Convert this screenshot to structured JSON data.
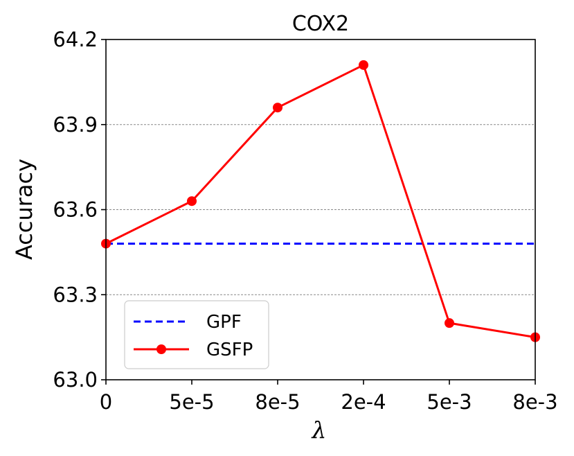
{
  "chart_data": {
    "type": "line",
    "title": "COX2",
    "xlabel": "λ",
    "ylabel": "Accuracy",
    "categories": [
      "0",
      "5e-5",
      "8e-5",
      "2e-4",
      "5e-3",
      "8e-3"
    ],
    "yticks": [
      "63.0",
      "63.3",
      "63.6",
      "63.9",
      "64.2"
    ],
    "ylim": [
      63.0,
      64.2
    ],
    "grid": "horizontal dashed",
    "legend_position": "bottom-left",
    "series": [
      {
        "name": "GPF",
        "values": [
          63.48,
          63.48,
          63.48,
          63.48,
          63.48,
          63.48
        ],
        "style": "dashed",
        "marker": "none",
        "color": "#0000ff"
      },
      {
        "name": "GSFP",
        "values": [
          63.48,
          63.63,
          63.96,
          64.11,
          63.2,
          63.15
        ],
        "style": "solid",
        "marker": "circle",
        "color": "#ff0000"
      }
    ]
  }
}
